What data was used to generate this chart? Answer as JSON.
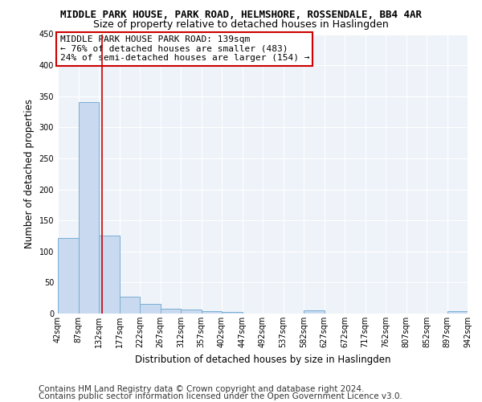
{
  "title": "MIDDLE PARK HOUSE, PARK ROAD, HELMSHORE, ROSSENDALE, BB4 4AR",
  "subtitle": "Size of property relative to detached houses in Haslingden",
  "xlabel": "Distribution of detached houses by size in Haslingden",
  "ylabel": "Number of detached properties",
  "bin_edges": [
    42,
    87,
    132,
    177,
    222,
    267,
    312,
    357,
    402,
    447,
    492,
    537,
    582,
    627,
    672,
    717,
    762,
    807,
    852,
    897,
    942
  ],
  "bar_heights": [
    122,
    340,
    125,
    27,
    15,
    8,
    6,
    4,
    3,
    0,
    0,
    0,
    5,
    0,
    0,
    0,
    0,
    0,
    0,
    4
  ],
  "bar_color": "#c8d9f0",
  "bar_edge_color": "#7bafd4",
  "vline_x": 139,
  "vline_color": "#cc0000",
  "ylim": [
    0,
    450
  ],
  "yticks": [
    0,
    50,
    100,
    150,
    200,
    250,
    300,
    350,
    400,
    450
  ],
  "annotation_text": "MIDDLE PARK HOUSE PARK ROAD: 139sqm\n← 76% of detached houses are smaller (483)\n24% of semi-detached houses are larger (154) →",
  "annotation_box_color": "#ffffff",
  "annotation_box_edge": "#cc0000",
  "footer1": "Contains HM Land Registry data © Crown copyright and database right 2024.",
  "footer2": "Contains public sector information licensed under the Open Government Licence v3.0.",
  "background_color": "#ffffff",
  "plot_background": "#eef2f9",
  "grid_color": "#ffffff",
  "title_fontsize": 9,
  "subtitle_fontsize": 9,
  "footer_fontsize": 7.5,
  "annot_fontsize": 8,
  "axis_label_fontsize": 8.5,
  "tick_fontsize": 7
}
